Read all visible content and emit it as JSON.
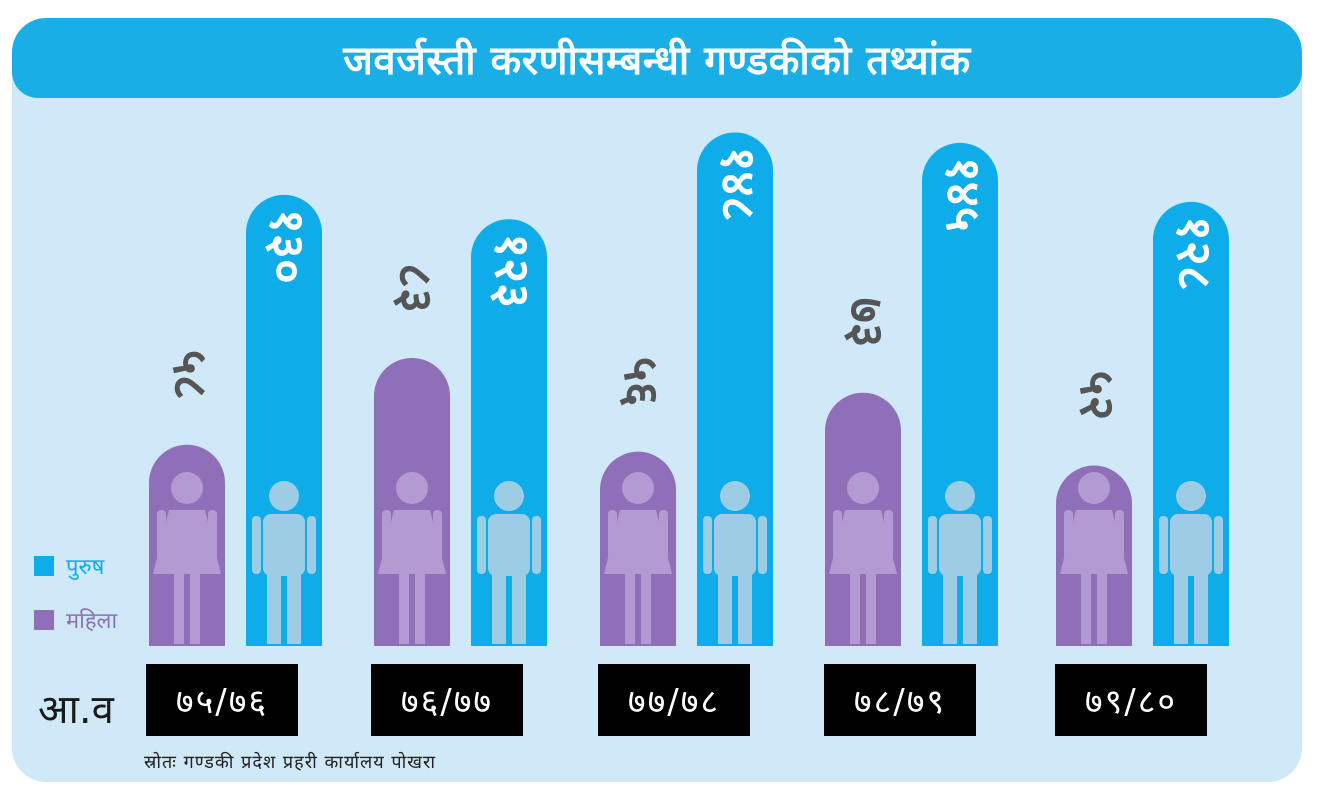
{
  "title": "जवर्जस्ती करणीसम्बन्धी गण्डकीको तथ्यांक",
  "legend": {
    "male_label": "पुरुष",
    "female_label": "महिला"
  },
  "xaxis_label": "आ.व",
  "source": "स्रोतः गण्डकी प्रदेश प्रहरी कार्यालय पोखरा",
  "colors": {
    "male": "#0eadea",
    "female": "#8f6fb7",
    "male_icon": "#9ccde4",
    "female_icon": "#b49ad3",
    "label": "#555555",
    "male_value": "#ffffff",
    "year_box": "#000000"
  },
  "chart_data": {
    "type": "bar",
    "categories": [
      "७५/७६",
      "७६/७७",
      "७७/७८",
      "७८/७९",
      "७९/८०"
    ],
    "series": [
      {
        "name": "महिला",
        "values": [
          58,
          83,
          56,
          73,
          52
        ],
        "labels": [
          "५८",
          "८३",
          "५६",
          "७३",
          "५२"
        ]
      },
      {
        "name": "पुरुष",
        "values": [
          130,
          123,
          148,
          145,
          128
        ],
        "labels": [
          "१३०",
          "१२३",
          "१४८",
          "१४५",
          "१२८"
        ]
      }
    ],
    "ylim": [
      0,
      150
    ]
  }
}
